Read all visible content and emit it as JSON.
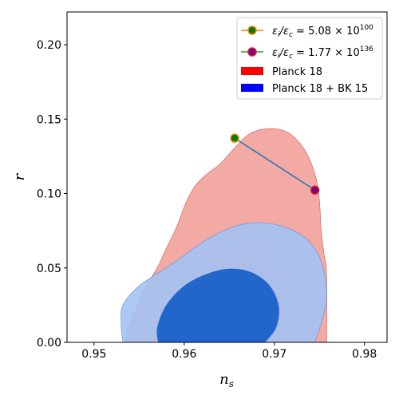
{
  "chart_data": {
    "type": "scatter",
    "title": "",
    "xlabel": "n",
    "xlabel_sub": "s",
    "ylabel": "r",
    "xlim": [
      0.947,
      0.9825
    ],
    "ylim": [
      0.0,
      0.222
    ],
    "xticks": [
      0.95,
      0.96,
      0.97,
      0.98
    ],
    "xtick_labels": [
      "0.95",
      "0.96",
      "0.97",
      "0.98"
    ],
    "yticks": [
      0.0,
      0.05,
      0.1,
      0.15,
      0.2
    ],
    "ytick_labels": [
      "0.00",
      "0.05",
      "0.10",
      "0.15",
      "0.20"
    ],
    "grid": false,
    "legend_position": "top-right",
    "line_color": "#1f77b4",
    "series": [
      {
        "name_parts": [
          "ε",
          "i",
          "/ε",
          "c",
          " = 5.08 × 10",
          "100"
        ],
        "x": [
          0.9656
        ],
        "y": [
          0.1372
        ],
        "marker_face": "#008000",
        "marker_edge": "#ff7f0e",
        "legend_line": "#ff7f0e"
      },
      {
        "name_parts": [
          "ε",
          "i",
          "/ε",
          "c",
          " = 1.77 × 10",
          "136"
        ],
        "x": [
          0.9745
        ],
        "y": [
          0.1023
        ],
        "marker_face": "#800080",
        "marker_edge": "#d62728",
        "legend_line": "#2ca02c"
      }
    ],
    "regions": [
      {
        "name": "Planck 18",
        "color": "#ff0000",
        "level_colors": [
          "#f4aaa4",
          "#ef8a85"
        ],
        "outer": [
          [
            0.9535,
            0.0
          ],
          [
            0.9538,
            0.01
          ],
          [
            0.9545,
            0.02
          ],
          [
            0.9555,
            0.035
          ],
          [
            0.957,
            0.05
          ],
          [
            0.958,
            0.063
          ],
          [
            0.9592,
            0.078
          ],
          [
            0.9602,
            0.094
          ],
          [
            0.9612,
            0.105
          ],
          [
            0.9625,
            0.113
          ],
          [
            0.964,
            0.12
          ],
          [
            0.9655,
            0.13
          ],
          [
            0.967,
            0.139
          ],
          [
            0.9685,
            0.143
          ],
          [
            0.9705,
            0.1432
          ],
          [
            0.972,
            0.139
          ],
          [
            0.9735,
            0.128
          ],
          [
            0.9746,
            0.111
          ],
          [
            0.975,
            0.095
          ],
          [
            0.9752,
            0.075
          ],
          [
            0.9755,
            0.06
          ],
          [
            0.9758,
            0.045
          ],
          [
            0.9758,
            0.0
          ]
        ],
        "inner": [
          [
            0.9575,
            0.0
          ],
          [
            0.958,
            0.015
          ],
          [
            0.9595,
            0.03
          ],
          [
            0.9615,
            0.05
          ],
          [
            0.9638,
            0.068
          ],
          [
            0.966,
            0.079
          ],
          [
            0.968,
            0.077
          ],
          [
            0.9698,
            0.063
          ],
          [
            0.9712,
            0.045
          ],
          [
            0.972,
            0.025
          ],
          [
            0.9722,
            0.0
          ]
        ]
      },
      {
        "name": "Planck 18 + BK 15",
        "color": "#0000ff",
        "level_colors": [
          "#a4c2f4",
          "#2266cc"
        ],
        "outer": [
          [
            0.9532,
            0.0
          ],
          [
            0.953,
            0.012
          ],
          [
            0.9532,
            0.025
          ],
          [
            0.955,
            0.038
          ],
          [
            0.9585,
            0.052
          ],
          [
            0.9615,
            0.065
          ],
          [
            0.964,
            0.074
          ],
          [
            0.967,
            0.08
          ],
          [
            0.9698,
            0.0795
          ],
          [
            0.9725,
            0.074
          ],
          [
            0.9745,
            0.063
          ],
          [
            0.9755,
            0.048
          ],
          [
            0.9758,
            0.03
          ],
          [
            0.9753,
            0.015
          ],
          [
            0.9745,
            0.0
          ]
        ],
        "inner": [
          [
            0.9571,
            0.0
          ],
          [
            0.957,
            0.01
          ],
          [
            0.958,
            0.025
          ],
          [
            0.96,
            0.038
          ],
          [
            0.9625,
            0.046
          ],
          [
            0.965,
            0.0495
          ],
          [
            0.9675,
            0.047
          ],
          [
            0.9695,
            0.038
          ],
          [
            0.9705,
            0.024
          ],
          [
            0.9702,
            0.01
          ],
          [
            0.969,
            0.0
          ]
        ]
      }
    ]
  },
  "legend": {
    "items": [
      {
        "kind": "line",
        "parts": [
          "ε",
          "i",
          "/ε",
          "c",
          " = 5.08 × 10",
          "100"
        ]
      },
      {
        "kind": "line",
        "parts": [
          "ε",
          "i",
          "/ε",
          "c",
          " = 1.77 × 10",
          "136"
        ]
      },
      {
        "kind": "patch",
        "label": "Planck 18"
      },
      {
        "kind": "patch",
        "label": "Planck 18 + BK 15"
      }
    ]
  }
}
